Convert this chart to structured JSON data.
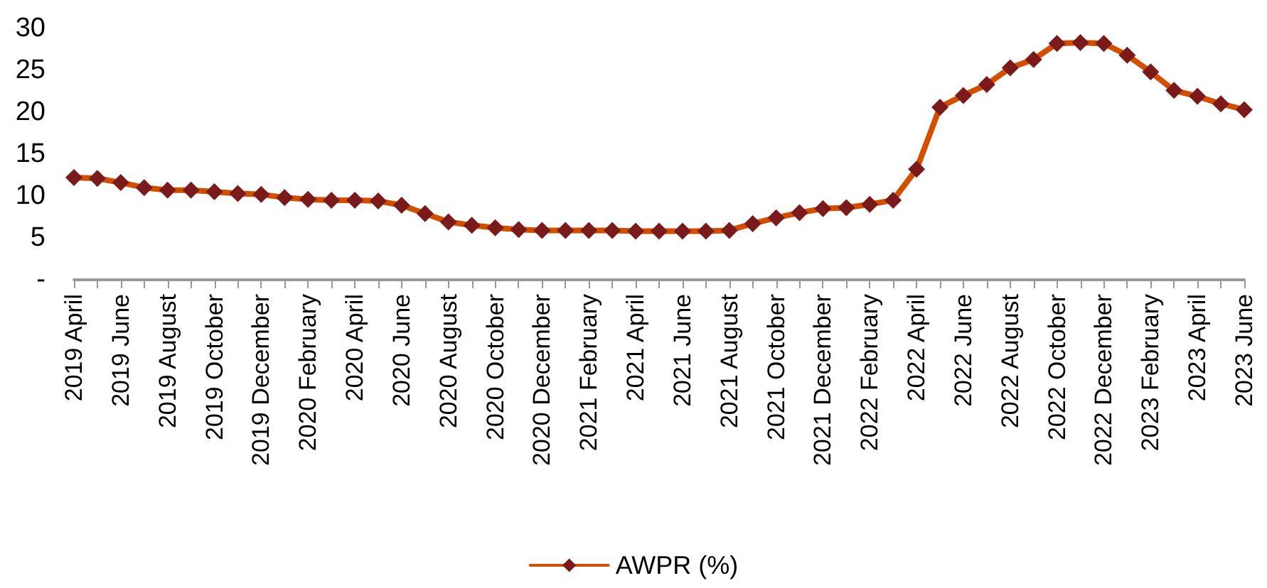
{
  "chart_data": {
    "type": "line",
    "categories": [
      "2019 April",
      null,
      "2019 June",
      null,
      "2019 August",
      null,
      "2019 October",
      null,
      "2019 December",
      null,
      "2020 February",
      null,
      "2020 April",
      null,
      "2020 June",
      null,
      "2020 August",
      null,
      "2020 October",
      null,
      "2020 December",
      null,
      "2021 February",
      null,
      "2021 April",
      null,
      "2021 June",
      null,
      "2021 August",
      null,
      "2021 October",
      null,
      "2021 December",
      null,
      "2022 February",
      null,
      "2022 April",
      null,
      "2022 June",
      null,
      "2022 August",
      null,
      "2022 October",
      null,
      "2022 December",
      null,
      "2023 February",
      null,
      "2023 April",
      null,
      "2023 June"
    ],
    "series": [
      {
        "name": "AWPR (%)",
        "color": "#d24e01",
        "values": [
          12.2,
          12.1,
          11.6,
          11.0,
          10.7,
          10.7,
          10.5,
          10.3,
          10.2,
          9.8,
          9.6,
          9.5,
          9.5,
          9.4,
          8.9,
          7.9,
          6.9,
          6.5,
          6.2,
          6.0,
          5.9,
          5.9,
          5.9,
          5.9,
          5.8,
          5.8,
          5.8,
          5.8,
          5.9,
          6.7,
          7.4,
          8.0,
          8.5,
          8.6,
          9.0,
          9.5,
          13.2,
          20.6,
          22.0,
          23.3,
          25.3,
          26.3,
          28.2,
          28.3,
          28.2,
          26.8,
          24.8,
          22.6,
          21.9,
          21.0,
          20.3
        ]
      }
    ],
    "ylim": [
      0,
      30
    ],
    "yticks": [
      {
        "value": 0,
        "label": "-"
      },
      5,
      10,
      15,
      20,
      25,
      30
    ],
    "grid": false,
    "legend": "bottom",
    "marker": "diamond",
    "line_style": "solid"
  }
}
